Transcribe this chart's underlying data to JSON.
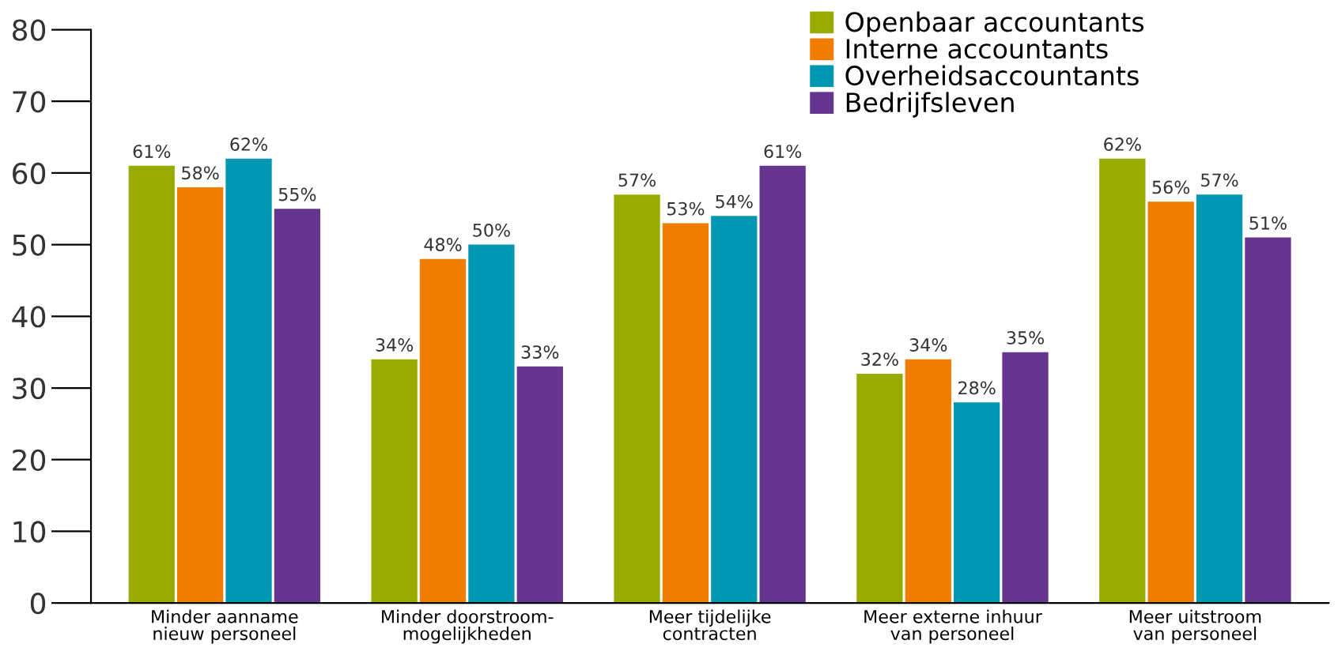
{
  "chart_data": {
    "type": "bar",
    "categories": [
      "Minder aanname\nnieuw personeel",
      "Minder doorstroom-\nmogelijkheden",
      "Meer tijdelijke\ncontracten",
      "Meer externe inhuur\nvan personeel",
      "Meer uitstroom\nvan personeel"
    ],
    "series": [
      {
        "name": "Openbaar accountants",
        "color": "#9aab00",
        "values": [
          61,
          34,
          57,
          32,
          62
        ],
        "value_labels": [
          "61%",
          "34%",
          "57%",
          "32%",
          "62%"
        ]
      },
      {
        "name": "Interne accountants",
        "color": "#f07d00",
        "values": [
          58,
          48,
          53,
          34,
          56
        ],
        "value_labels": [
          "58%",
          "48%",
          "53%",
          "34%",
          "56%"
        ]
      },
      {
        "name": "Overheidsaccountants",
        "color": "#0097b2",
        "values": [
          62,
          50,
          54,
          28,
          57
        ],
        "value_labels": [
          "62%",
          "50%",
          "54%",
          "28%",
          "57%"
        ]
      },
      {
        "name": "Bedrijfsleven",
        "color": "#66358f",
        "values": [
          55,
          33,
          61,
          35,
          51
        ],
        "value_labels": [
          "55%",
          "33%",
          "61%",
          "35%",
          "51%"
        ]
      }
    ],
    "ylim": [
      0,
      80
    ],
    "yticks": [
      0,
      10,
      20,
      30,
      40,
      50,
      60,
      70,
      80
    ],
    "grid": false,
    "legend": "top right"
  }
}
